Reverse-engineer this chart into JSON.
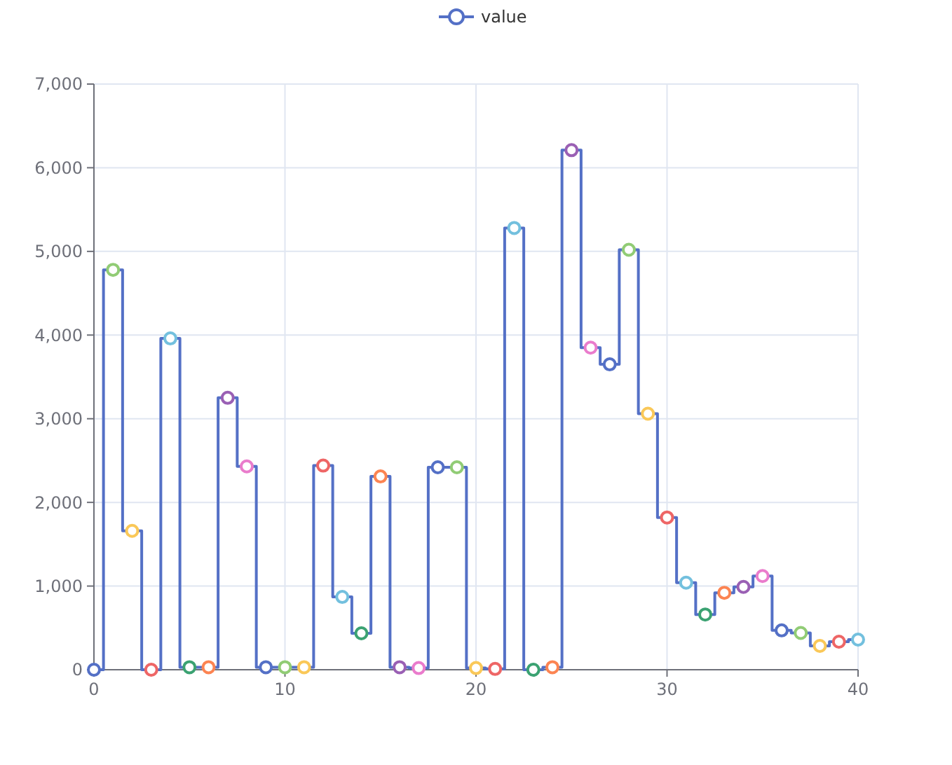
{
  "chart_data": {
    "type": "step",
    "x": [
      0,
      1,
      2,
      3,
      4,
      5,
      6,
      7,
      8,
      9,
      10,
      11,
      12,
      13,
      14,
      15,
      16,
      17,
      18,
      19,
      20,
      21,
      22,
      23,
      24,
      25,
      26,
      27,
      28,
      29,
      30,
      31,
      32,
      33,
      34,
      35,
      36,
      37,
      38,
      39,
      40
    ],
    "series": [
      {
        "name": "value",
        "color": "#5470c6",
        "values": [
          0,
          4780,
          1660,
          0,
          3960,
          30,
          30,
          3250,
          2430,
          30,
          30,
          30,
          2440,
          870,
          435,
          2310,
          30,
          20,
          2420,
          2420,
          20,
          10,
          5280,
          0,
          30,
          6210,
          3850,
          3650,
          5020,
          3060,
          1820,
          1040,
          660,
          920,
          990,
          1120,
          470,
          440,
          285,
          335,
          360
        ],
        "colors": [
          "#5470c6",
          "#91cc75",
          "#fac858",
          "#ee6666",
          "#73c0de",
          "#3ba272",
          "#fc8452",
          "#9a60b4",
          "#ea7ccc",
          "#5470c6",
          "#91cc75",
          "#fac858",
          "#ee6666",
          "#73c0de",
          "#3ba272",
          "#fc8452",
          "#9a60b4",
          "#ea7ccc",
          "#5470c6",
          "#91cc75",
          "#fac858",
          "#ee6666",
          "#73c0de",
          "#3ba272",
          "#fc8452",
          "#9a60b4",
          "#ea7ccc",
          "#5470c6",
          "#91cc75",
          "#fac858",
          "#ee6666",
          "#73c0de",
          "#3ba272",
          "#fc8452",
          "#9a60b4",
          "#ea7ccc",
          "#5470c6",
          "#91cc75",
          "#fac858",
          "#ee6666",
          "#73c0de"
        ]
      }
    ],
    "xlim": [
      0,
      40
    ],
    "xticks": [
      0,
      10,
      20,
      30,
      40
    ],
    "ylim": [
      0,
      7000
    ],
    "yticks": [
      0,
      {
        "value": 1000,
        "label": "1,000"
      },
      {
        "value": 2000,
        "label": "2,000"
      },
      {
        "value": 3000,
        "label": "3,000"
      },
      {
        "value": 4000,
        "label": "4,000"
      },
      {
        "value": 5000,
        "label": "5,000"
      },
      {
        "value": 6000,
        "label": "6,000"
      },
      {
        "value": 7000,
        "label": "7,000"
      }
    ],
    "grid": true,
    "legend": "top",
    "marker": "circle",
    "line_style": "solid"
  }
}
